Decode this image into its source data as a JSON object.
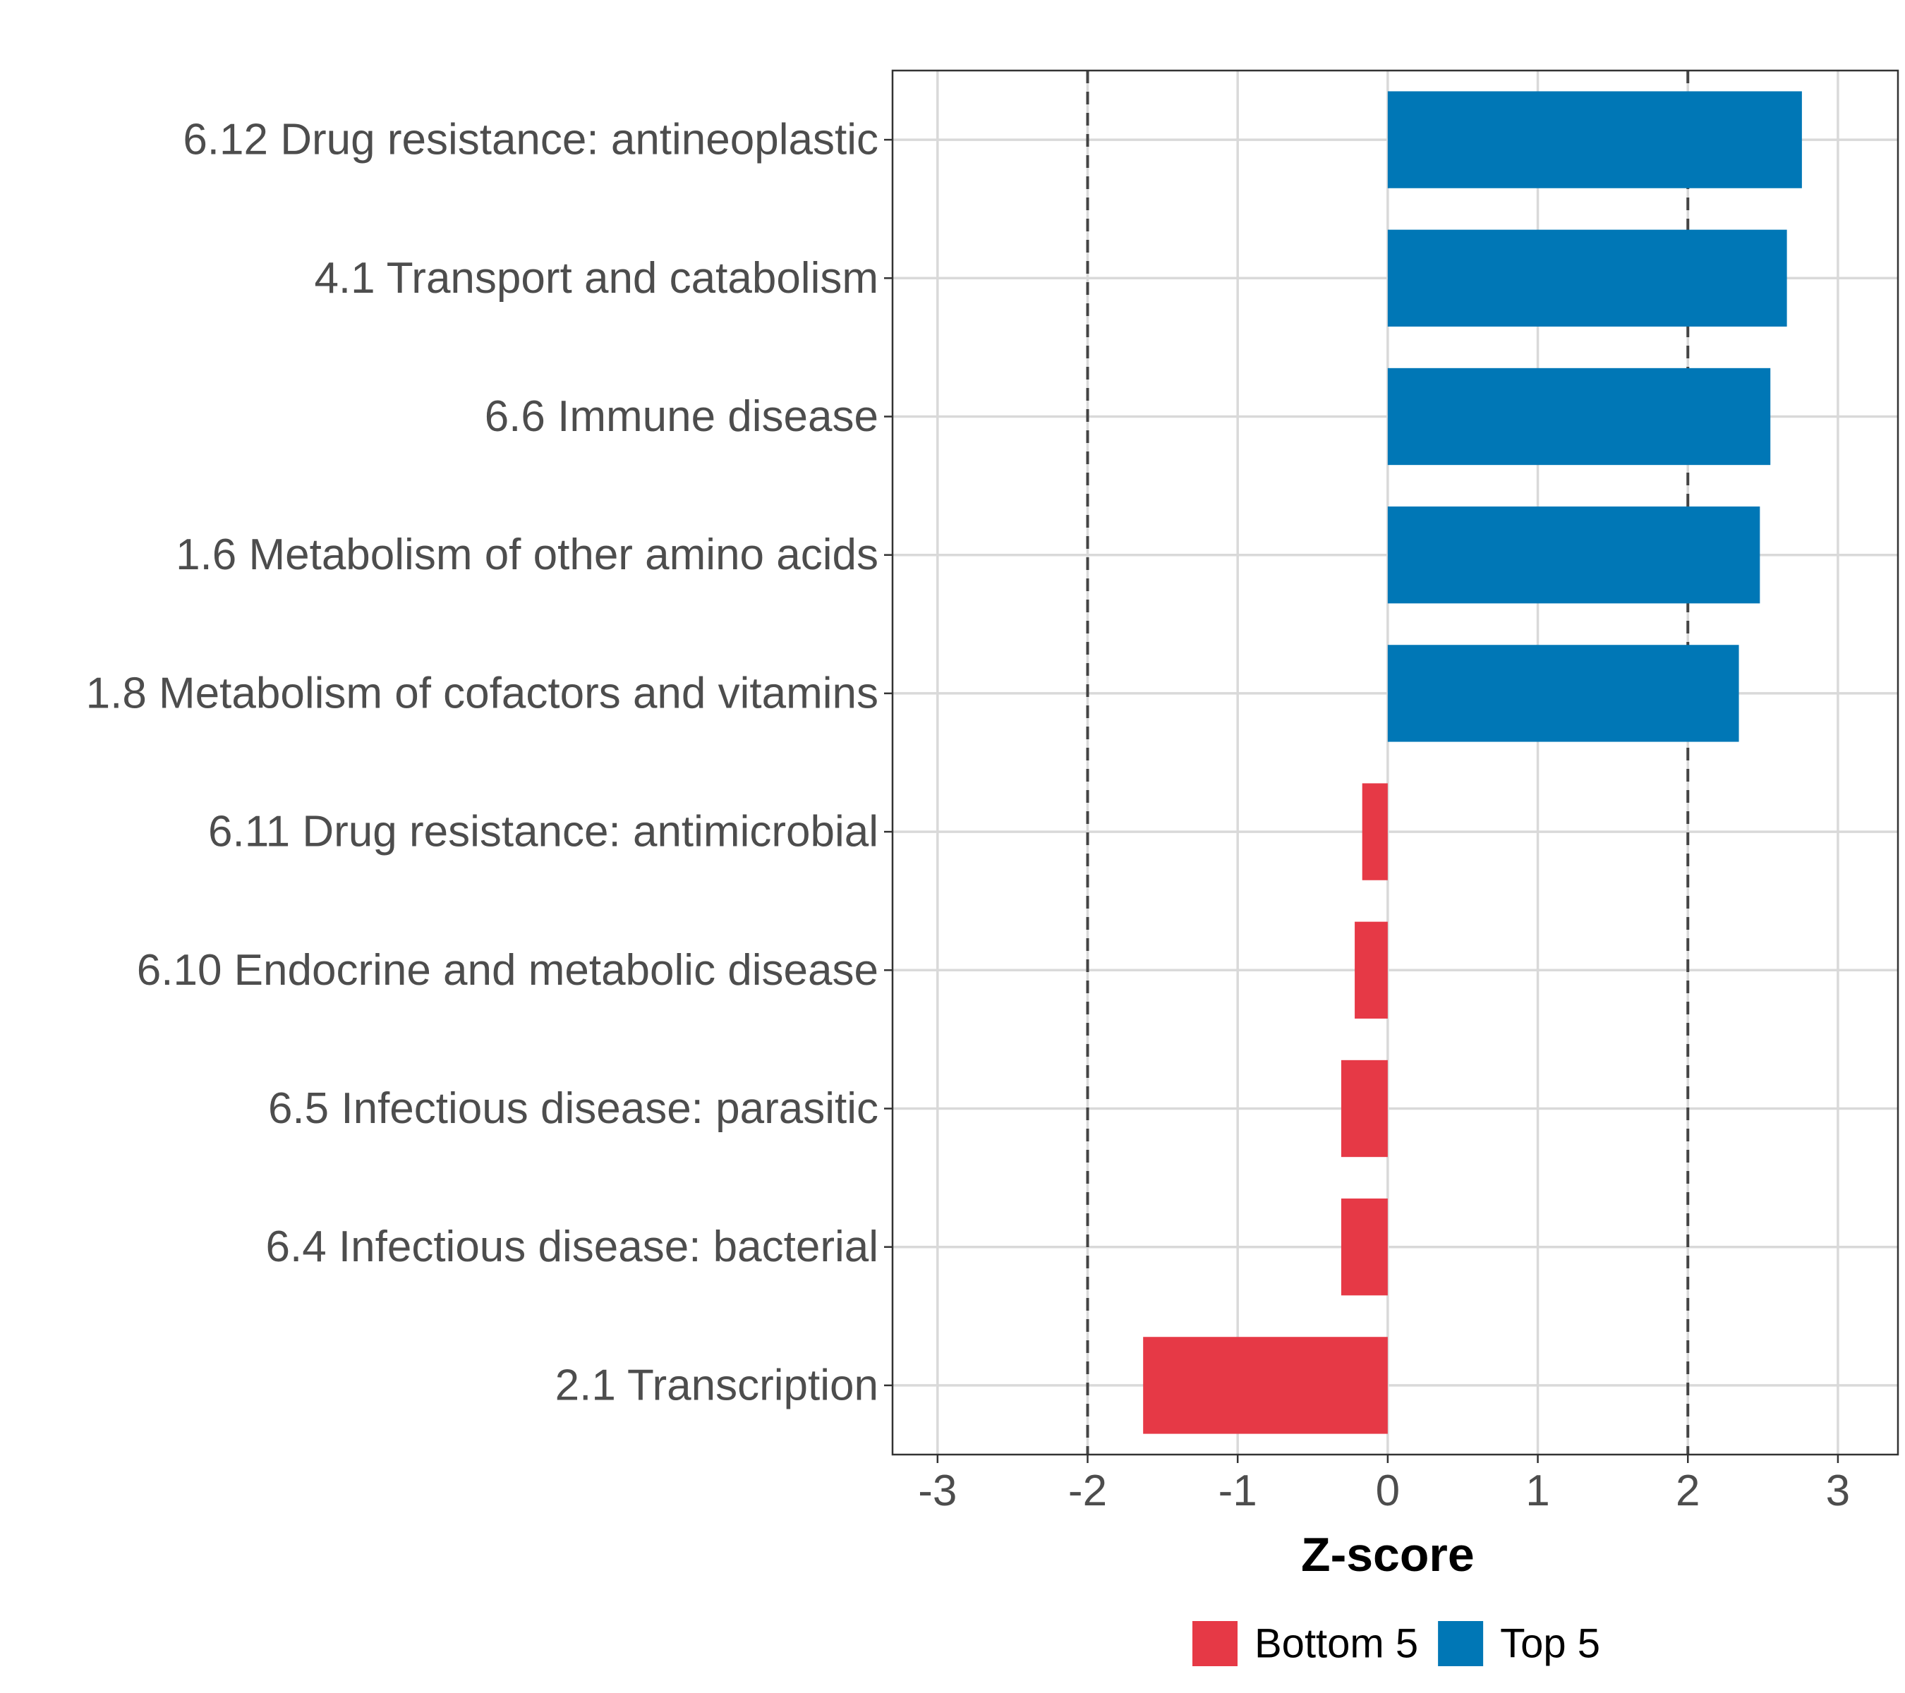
{
  "chart_data": {
    "type": "bar",
    "orientation": "horizontal",
    "title": "",
    "xlabel": "Z-score",
    "ylabel": "",
    "xlim": [
      -3.3,
      3.4
    ],
    "xticks": [
      -3,
      -2,
      -1,
      0,
      1,
      2,
      3
    ],
    "xtick_labels": [
      "-3",
      "-2",
      "-1",
      "0",
      "1",
      "2",
      "3"
    ],
    "reference_lines": [
      -2,
      2
    ],
    "grid": true,
    "categories": [
      "6.12 Drug resistance: antineoplastic",
      "4.1 Transport and catabolism",
      "6.6 Immune disease",
      "1.6 Metabolism of other amino acids",
      "1.8 Metabolism of cofactors and vitamins",
      "6.11 Drug resistance: antimicrobial",
      "6.10 Endocrine and metabolic disease",
      "6.5 Infectious disease: parasitic",
      "6.4 Infectious disease: bacterial",
      "2.1 Transcription"
    ],
    "values": [
      2.76,
      2.66,
      2.55,
      2.48,
      2.34,
      -0.17,
      -0.22,
      -0.31,
      -0.31,
      -1.63
    ],
    "groups": [
      "Top 5",
      "Top 5",
      "Top 5",
      "Top 5",
      "Top 5",
      "Bottom 5",
      "Bottom 5",
      "Bottom 5",
      "Bottom 5",
      "Bottom 5"
    ],
    "legend": [
      {
        "name": "Bottom 5",
        "color": "#e63946"
      },
      {
        "name": "Top 5",
        "color": "#0077b6"
      }
    ],
    "legend_position": "bottom"
  }
}
